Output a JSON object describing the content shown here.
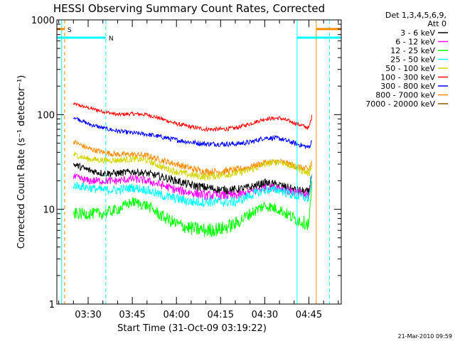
{
  "chart_data": {
    "type": "line",
    "title": "HESSI Observing Summary Count Rates, Corrected",
    "xlabel": "Start Time (31-Oct-09 03:19:22)",
    "ylabel": "Corrected Count Rate (s⁻¹ detector⁻¹)",
    "xlim": [
      "03:19:22",
      "04:56:00"
    ],
    "ylim": [
      1,
      1000
    ],
    "yscale": "log",
    "grid": false,
    "x_ticks": [
      "03:30",
      "03:45",
      "04:00",
      "04:15",
      "04:30",
      "04:45"
    ],
    "y_ticks": [
      "1",
      "10",
      "100",
      "1000"
    ],
    "legend": {
      "position": "right",
      "header": [
        "Det 1,3,4,5,6,9,",
        "Att 0"
      ],
      "entries": [
        {
          "label": "3 - 6 keV",
          "color": "#000000"
        },
        {
          "label": "6 - 12 keV",
          "color": "#ff00ff"
        },
        {
          "label": "12 - 25 keV",
          "color": "#00ff00"
        },
        {
          "label": "25 - 50 keV",
          "color": "#00ffff"
        },
        {
          "label": "50 - 100 keV",
          "color": "#d4d400"
        },
        {
          "label": "100 - 300 keV",
          "color": "#ff0000"
        },
        {
          "label": "300 - 800 keV",
          "color": "#0000ff"
        },
        {
          "label": "800 - 7000 keV",
          "color": "#ff8c00"
        },
        {
          "label": "7000 - 20000 keV",
          "color": "#8b5a00"
        }
      ]
    },
    "series": [
      {
        "color": "#ff0000",
        "x": [
          "03:25",
          "03:30",
          "03:35",
          "03:40",
          "03:45",
          "03:50",
          "03:55",
          "04:00",
          "04:05",
          "04:10",
          "04:15",
          "04:20",
          "04:25",
          "04:30",
          "04:35",
          "04:40",
          "04:45",
          "04:46"
        ],
        "values": [
          130,
          118,
          108,
          100,
          102,
          100,
          90,
          80,
          74,
          70,
          70,
          72,
          80,
          90,
          92,
          82,
          72,
          95
        ]
      },
      {
        "color": "#0000ff",
        "x": [
          "03:25",
          "03:30",
          "03:35",
          "03:40",
          "03:45",
          "03:50",
          "03:55",
          "04:00",
          "04:05",
          "04:10",
          "04:15",
          "04:20",
          "04:25",
          "04:30",
          "04:35",
          "04:40",
          "04:45",
          "04:46"
        ],
        "values": [
          95,
          80,
          72,
          67,
          64,
          62,
          58,
          54,
          51,
          49,
          49,
          49,
          51,
          57,
          56,
          50,
          45,
          52
        ]
      },
      {
        "color": "#ff8c00",
        "x": [
          "03:25",
          "03:30",
          "03:35",
          "03:40",
          "03:45",
          "03:50",
          "03:55",
          "04:00",
          "04:05",
          "04:10",
          "04:15",
          "04:20",
          "04:25",
          "04:30",
          "04:35",
          "04:40",
          "04:45",
          "04:46"
        ],
        "values": [
          52,
          44,
          40,
          38,
          38,
          37,
          33,
          30,
          27,
          25,
          25,
          26,
          28,
          31,
          32,
          29,
          26,
          32
        ]
      },
      {
        "color": "#d4d400",
        "x": [
          "03:25",
          "03:30",
          "03:35",
          "03:40",
          "03:45",
          "03:50",
          "03:55",
          "04:00",
          "04:05",
          "04:10",
          "04:15",
          "04:20",
          "04:25",
          "04:30",
          "04:35",
          "04:40",
          "04:45",
          "04:46"
        ],
        "values": [
          38,
          34,
          33,
          33,
          34,
          33,
          28,
          25,
          23,
          22,
          23,
          24,
          26,
          30,
          32,
          28,
          24,
          30
        ]
      },
      {
        "color": "#000000",
        "x": [
          "03:25",
          "03:30",
          "03:35",
          "03:40",
          "03:45",
          "03:50",
          "03:55",
          "04:00",
          "04:05",
          "04:10",
          "04:15",
          "04:20",
          "04:25",
          "04:30",
          "04:35",
          "04:40",
          "04:45",
          "04:46"
        ],
        "values": [
          30,
          26,
          24,
          24,
          25,
          24,
          22,
          20,
          18,
          17,
          16,
          16,
          17,
          19,
          18,
          16,
          15,
          24
        ]
      },
      {
        "color": "#ff00ff",
        "x": [
          "03:25",
          "03:30",
          "03:35",
          "03:40",
          "03:45",
          "03:50",
          "03:55",
          "04:00",
          "04:05",
          "04:10",
          "04:15",
          "04:20",
          "04:25",
          "04:30",
          "04:35",
          "04:40",
          "04:45",
          "04:46"
        ],
        "values": [
          22,
          20,
          20,
          20,
          21,
          20,
          18,
          16,
          15,
          14,
          14,
          14,
          15,
          17,
          17,
          15,
          14,
          22
        ]
      },
      {
        "color": "#00ffff",
        "x": [
          "03:25",
          "03:30",
          "03:35",
          "03:40",
          "03:45",
          "03:50",
          "03:55",
          "04:00",
          "04:05",
          "04:10",
          "04:15",
          "04:20",
          "04:25",
          "04:30",
          "04:35",
          "04:40",
          "04:45",
          "04:46"
        ],
        "values": [
          18,
          17,
          16,
          16,
          17,
          16,
          14,
          13,
          12,
          12,
          12,
          12,
          14,
          16,
          16,
          14,
          13,
          21
        ]
      },
      {
        "color": "#00ff00",
        "x": [
          "03:25",
          "03:30",
          "03:35",
          "03:40",
          "03:45",
          "03:50",
          "03:55",
          "04:00",
          "04:05",
          "04:10",
          "04:15",
          "04:20",
          "04:25",
          "04:30",
          "04:35",
          "04:40",
          "04:45",
          "04:46"
        ],
        "values": [
          9,
          9,
          9,
          10,
          12,
          11,
          8.5,
          7,
          6.3,
          6,
          6.2,
          7,
          9,
          11,
          10,
          8,
          7,
          18
        ]
      }
    ],
    "intervals": [
      {
        "label": "S",
        "color": "#ff8c00",
        "from": "03:19:22",
        "to": "03:22:00",
        "y": 800
      },
      {
        "label": "N",
        "color": "#00ffff",
        "from": "03:19:22",
        "to": "03:36:00",
        "y": 650
      },
      {
        "label": "",
        "color": "#00ffff",
        "from": "04:41:00",
        "to": "04:56:00",
        "y": 650
      },
      {
        "label": "",
        "color": "#ff8c00",
        "from": "04:47:30",
        "to": "04:56:00",
        "y": 800
      }
    ],
    "vlines": [
      {
        "t": "03:21:00",
        "color": "#00ffff",
        "style": "solid"
      },
      {
        "t": "03:22:00",
        "color": "#ff8c00",
        "style": "dash"
      },
      {
        "t": "03:36:00",
        "color": "#00ffff",
        "style": "dash"
      },
      {
        "t": "04:41:00",
        "color": "#00ffff",
        "style": "solid"
      },
      {
        "t": "04:47:30",
        "color": "#ff8c00",
        "style": "solid"
      },
      {
        "t": "04:52:00",
        "color": "#00ffff",
        "style": "dash"
      }
    ]
  },
  "footer_date": "21-Mar-2010 09:59"
}
